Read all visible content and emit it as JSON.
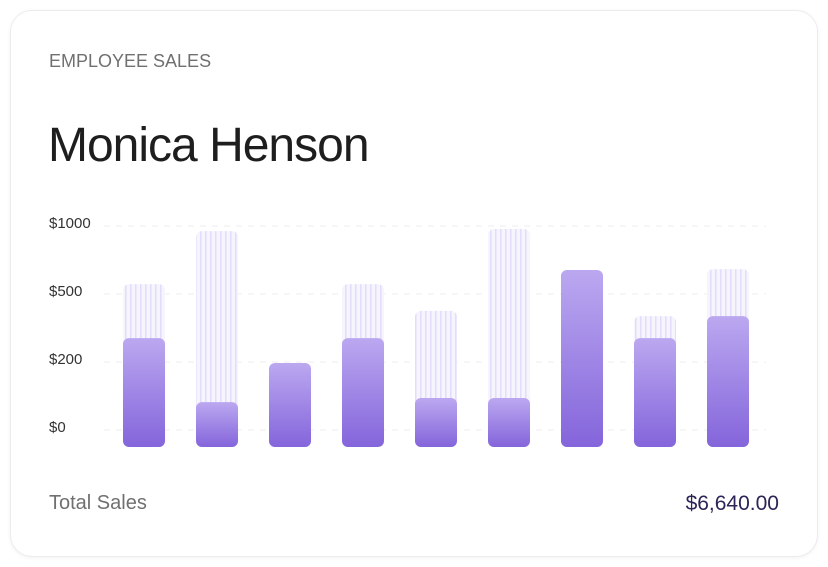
{
  "header": {
    "eyebrow": "EMPLOYEE SALES",
    "title": "Monica Henson"
  },
  "chart_data": {
    "type": "bar",
    "yticks": [
      0,
      {
        "value": 200,
        "label": "$200"
      },
      {
        "value": 500,
        "label": "$500"
      },
      {
        "value": 1000,
        "label": "$1000"
      }
    ],
    "ylim": [
      0,
      1000
    ],
    "grid": true,
    "series": [
      {
        "color": "#e9e4fb",
        "values": [
          580,
          970,
          200,
          580,
          430,
          985,
          684,
          407,
          690
        ]
      },
      {
        "color": "#8465db",
        "values": [
          310,
          85,
          200,
          310,
          97,
          97,
          684,
          310,
          407
        ]
      }
    ]
  },
  "footer": {
    "label": "Total Sales",
    "total": "$6,640.00"
  }
}
